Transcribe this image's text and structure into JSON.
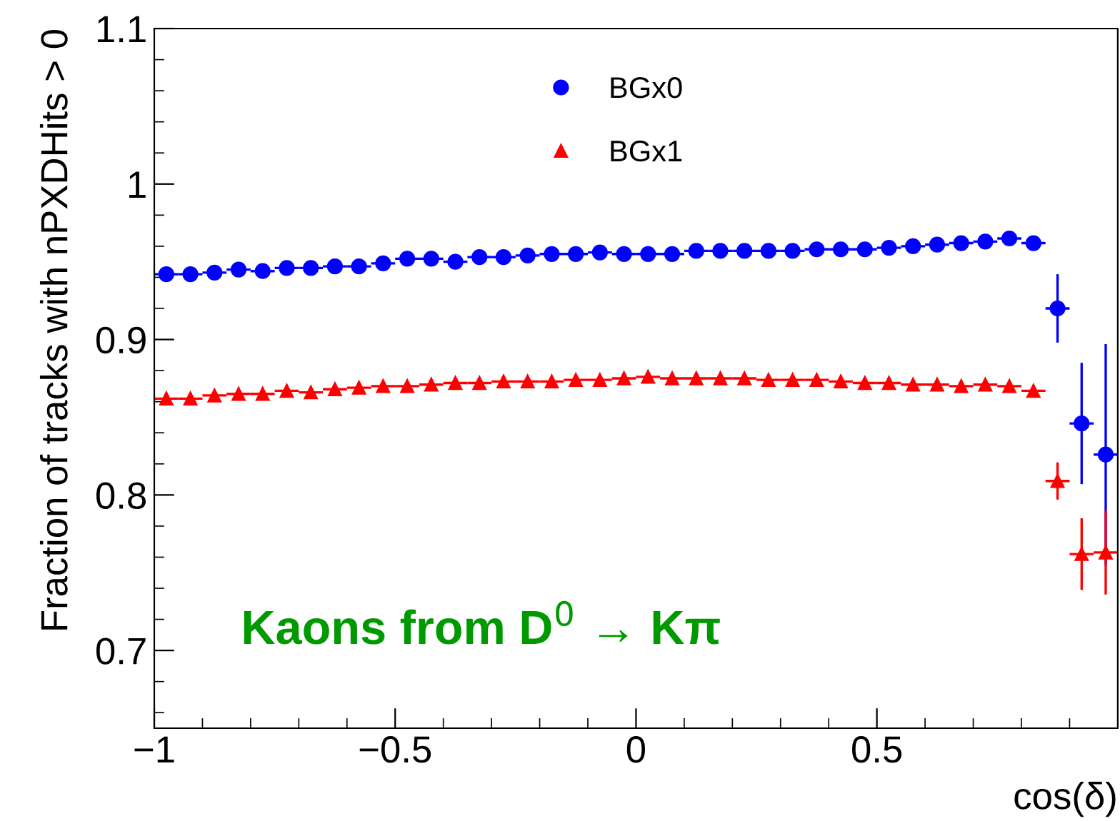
{
  "chart_data": {
    "type": "scatter",
    "xlabel": "cos(δ)",
    "ylabel": "Fraction of tracks with nPXDHits > 0",
    "x": [
      -0.975,
      -0.925,
      -0.875,
      -0.825,
      -0.775,
      -0.725,
      -0.675,
      -0.625,
      -0.575,
      -0.525,
      -0.475,
      -0.425,
      -0.375,
      -0.325,
      -0.275,
      -0.225,
      -0.175,
      -0.125,
      -0.075,
      -0.025,
      0.025,
      0.075,
      0.125,
      0.175,
      0.225,
      0.275,
      0.325,
      0.375,
      0.425,
      0.475,
      0.525,
      0.575,
      0.625,
      0.675,
      0.725,
      0.775,
      0.825,
      0.875,
      0.925,
      0.975
    ],
    "series": [
      {
        "name": "BGx0",
        "color": "#0000ff",
        "marker": "circle",
        "values": [
          0.942,
          0.942,
          0.943,
          0.945,
          0.944,
          0.946,
          0.946,
          0.947,
          0.947,
          0.949,
          0.952,
          0.952,
          0.95,
          0.953,
          0.953,
          0.954,
          0.955,
          0.955,
          0.956,
          0.955,
          0.955,
          0.955,
          0.957,
          0.957,
          0.957,
          0.957,
          0.957,
          0.958,
          0.958,
          0.958,
          0.959,
          0.96,
          0.961,
          0.962,
          0.963,
          0.965,
          0.962,
          0.92,
          0.846,
          0.826
        ],
        "errors": [
          0.004,
          0.004,
          0.004,
          0.004,
          0.004,
          0.004,
          0.004,
          0.004,
          0.003,
          0.003,
          0.003,
          0.003,
          0.003,
          0.003,
          0.003,
          0.002,
          0.002,
          0.002,
          0.002,
          0.002,
          0.002,
          0.002,
          0.002,
          0.002,
          0.002,
          0.002,
          0.002,
          0.002,
          0.002,
          0.002,
          0.002,
          0.002,
          0.002,
          0.002,
          0.002,
          0.003,
          0.004,
          0.022,
          0.039,
          0.071
        ],
        "xerrors": [
          0.025,
          0.025,
          0.025,
          0.025,
          0.025,
          0.025,
          0.025,
          0.025,
          0.025,
          0.025,
          0.025,
          0.025,
          0.025,
          0.025,
          0.025,
          0.025,
          0.025,
          0.025,
          0.025,
          0.025,
          0.025,
          0.025,
          0.025,
          0.025,
          0.025,
          0.025,
          0.025,
          0.025,
          0.025,
          0.025,
          0.025,
          0.025,
          0.025,
          0.025,
          0.025,
          0.025,
          0.025,
          0.025,
          0.025,
          0.025
        ]
      },
      {
        "name": "BGx1",
        "color": "#ff0000",
        "marker": "triangle",
        "values": [
          0.862,
          0.862,
          0.864,
          0.865,
          0.865,
          0.867,
          0.866,
          0.868,
          0.869,
          0.87,
          0.87,
          0.871,
          0.872,
          0.872,
          0.873,
          0.873,
          0.873,
          0.874,
          0.874,
          0.875,
          0.876,
          0.875,
          0.875,
          0.875,
          0.875,
          0.874,
          0.874,
          0.874,
          0.873,
          0.872,
          0.872,
          0.871,
          0.871,
          0.87,
          0.871,
          0.87,
          0.867,
          0.809,
          0.762,
          0.763
        ],
        "errors": [
          0.001,
          0.001,
          0.001,
          0.001,
          0.001,
          0.001,
          0.001,
          0.001,
          0.001,
          0.001,
          0.001,
          0.001,
          0.001,
          0.001,
          0.001,
          0.001,
          0.001,
          0.001,
          0.001,
          0.001,
          0.001,
          0.001,
          0.001,
          0.001,
          0.001,
          0.001,
          0.001,
          0.001,
          0.001,
          0.001,
          0.001,
          0.001,
          0.001,
          0.001,
          0.001,
          0.001,
          0.002,
          0.012,
          0.023,
          0.027
        ],
        "xerrors": [
          0.025,
          0.025,
          0.025,
          0.025,
          0.025,
          0.025,
          0.025,
          0.025,
          0.025,
          0.025,
          0.025,
          0.025,
          0.025,
          0.025,
          0.025,
          0.025,
          0.025,
          0.025,
          0.025,
          0.025,
          0.025,
          0.025,
          0.025,
          0.025,
          0.025,
          0.025,
          0.025,
          0.025,
          0.025,
          0.025,
          0.025,
          0.025,
          0.025,
          0.025,
          0.025,
          0.025,
          0.025,
          0.025,
          0.025,
          0.025
        ]
      }
    ],
    "xlim": [
      -1,
      1
    ],
    "ylim": [
      0.65,
      1.1
    ],
    "xticks": [
      {
        "value": -1,
        "label": "−1"
      },
      {
        "value": -0.5,
        "label": "−0.5"
      },
      0,
      0.5
    ],
    "yticks": [
      0.7,
      0.8,
      0.9,
      1,
      1.1
    ],
    "legend": "top",
    "annotations": [
      "Kaons from D$^{0}$ → Kπ"
    ]
  }
}
